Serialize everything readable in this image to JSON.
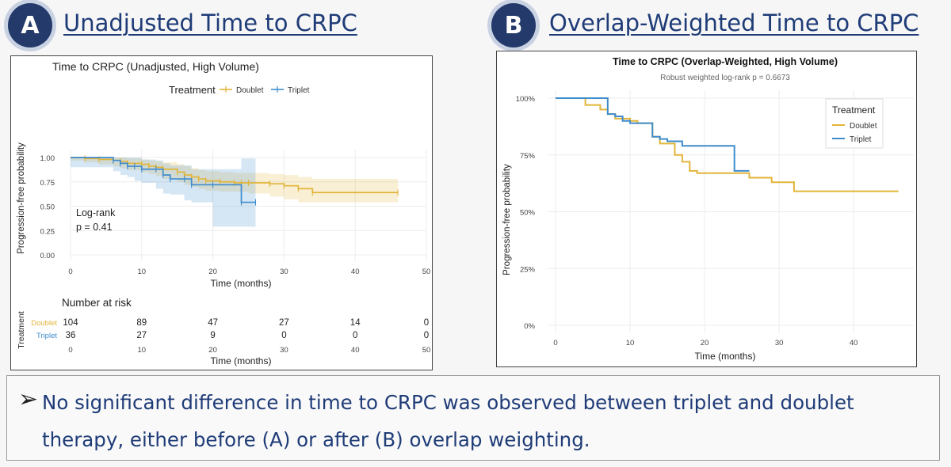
{
  "panel_a": {
    "badge": "A",
    "heading": "Unadjusted Time to CRPC"
  },
  "panel_b": {
    "badge": "B",
    "heading": "Overlap-Weighted Time to CRPC"
  },
  "note": {
    "bullet_icon": "arrow-bullet-icon",
    "text": "No significant difference in time to CRPC was observed between triplet and doublet therapy, either before (A) or after (B) overlap weighting."
  },
  "colors": {
    "doublet": "#e2b53a",
    "triplet": "#3f8ccc",
    "heading": "#1f3c78",
    "badge": "#233a6b"
  },
  "chart_data": [
    {
      "type": "line",
      "subtype": "kaplan-meier",
      "title": "Time to CRPC (Unadjusted, High Volume)",
      "xlabel": "Time (months)",
      "ylabel": "Progression-free probability",
      "xlim": [
        0,
        50
      ],
      "ylim": [
        0,
        1
      ],
      "x_ticks": [
        "0",
        "10",
        "20",
        "30",
        "40",
        "50"
      ],
      "y_ticks": [
        "0.00",
        "0.25",
        "0.50",
        "0.75",
        "1.00"
      ],
      "y_tick_values": [
        0,
        0.25,
        0.5,
        0.75,
        1.0
      ],
      "legend_title": "Treatment",
      "legend_position": "top",
      "grid": true,
      "annotation_line1": "Log-rank",
      "annotation_line2": "p = 0.41",
      "series": [
        {
          "name": "Doublet",
          "x": [
            0,
            2,
            4,
            6,
            7,
            8,
            10,
            11,
            12,
            13,
            15,
            16,
            17,
            18,
            19,
            21,
            23,
            24,
            25,
            28,
            30,
            32,
            34,
            46
          ],
          "y": [
            1.0,
            0.99,
            0.98,
            0.97,
            0.96,
            0.94,
            0.93,
            0.91,
            0.9,
            0.88,
            0.85,
            0.82,
            0.8,
            0.78,
            0.76,
            0.75,
            0.74,
            0.74,
            0.74,
            0.73,
            0.71,
            0.68,
            0.64,
            0.64
          ],
          "ci_upper": [
            1.0,
            1.0,
            1.0,
            1.0,
            1.0,
            0.99,
            0.98,
            0.97,
            0.96,
            0.95,
            0.93,
            0.91,
            0.89,
            0.87,
            0.86,
            0.85,
            0.84,
            0.84,
            0.84,
            0.83,
            0.82,
            0.8,
            0.78,
            0.78
          ],
          "ci_lower": [
            1.0,
            0.97,
            0.95,
            0.93,
            0.91,
            0.89,
            0.87,
            0.85,
            0.83,
            0.81,
            0.78,
            0.75,
            0.72,
            0.7,
            0.68,
            0.66,
            0.65,
            0.65,
            0.65,
            0.63,
            0.6,
            0.57,
            0.54,
            0.54
          ]
        },
        {
          "name": "Triplet",
          "x": [
            0,
            6,
            7,
            8,
            9,
            10,
            12,
            13,
            14,
            16,
            17,
            20,
            24,
            26
          ],
          "y": [
            1.0,
            0.97,
            0.94,
            0.91,
            0.91,
            0.88,
            0.88,
            0.82,
            0.78,
            0.78,
            0.72,
            0.72,
            0.54,
            0.54
          ],
          "ci_upper": [
            1.0,
            1.0,
            1.0,
            1.0,
            1.0,
            0.98,
            0.97,
            0.94,
            0.92,
            0.92,
            0.88,
            0.88,
            0.99,
            0.99
          ],
          "ci_lower": [
            1.0,
            0.9,
            0.86,
            0.82,
            0.8,
            0.76,
            0.74,
            0.68,
            0.63,
            0.62,
            0.56,
            0.54,
            0.29,
            0.29
          ]
        }
      ],
      "risk_table": {
        "title": "Number at risk",
        "ylabel": "Treatment",
        "xlabel": "Time (months)",
        "times": [
          "0",
          "10",
          "20",
          "30",
          "40",
          "50"
        ],
        "rows": [
          {
            "name": "Doublet",
            "values": [
              "104",
              "89",
              "47",
              "27",
              "14",
              "0"
            ]
          },
          {
            "name": "Triplet",
            "values": [
              "36",
              "27",
              "9",
              "0",
              "0",
              "0"
            ]
          }
        ]
      }
    },
    {
      "type": "line",
      "subtype": "kaplan-meier",
      "title": "Time to CRPC (Overlap-Weighted, High Volume)",
      "subtitle": "Robust weighted log-rank p = 0.6673",
      "xlabel": "Time (months)",
      "ylabel": "Progression-free probability",
      "xlim": [
        0,
        47
      ],
      "ylim": [
        0,
        1
      ],
      "x_ticks": [
        "0",
        "10",
        "20",
        "30",
        "40"
      ],
      "y_ticks": [
        "0%",
        "25%",
        "50%",
        "75%",
        "100%"
      ],
      "y_tick_values": [
        0,
        0.25,
        0.5,
        0.75,
        1.0
      ],
      "legend_title": "Treatment",
      "legend_position": "top-right",
      "grid": true,
      "series": [
        {
          "name": "Doublet",
          "x": [
            0,
            4,
            6,
            7,
            8,
            10,
            11,
            13,
            14,
            16,
            17,
            18,
            19,
            23,
            26,
            29,
            32,
            46
          ],
          "y": [
            1.0,
            0.97,
            0.95,
            0.93,
            0.91,
            0.9,
            0.89,
            0.83,
            0.8,
            0.75,
            0.72,
            0.68,
            0.67,
            0.67,
            0.65,
            0.63,
            0.59,
            0.59
          ]
        },
        {
          "name": "Triplet",
          "x": [
            0,
            7,
            8,
            9,
            10,
            13,
            14,
            15,
            17,
            24,
            26
          ],
          "y": [
            1.0,
            0.93,
            0.92,
            0.9,
            0.89,
            0.83,
            0.82,
            0.81,
            0.79,
            0.68,
            0.68
          ]
        }
      ]
    }
  ]
}
